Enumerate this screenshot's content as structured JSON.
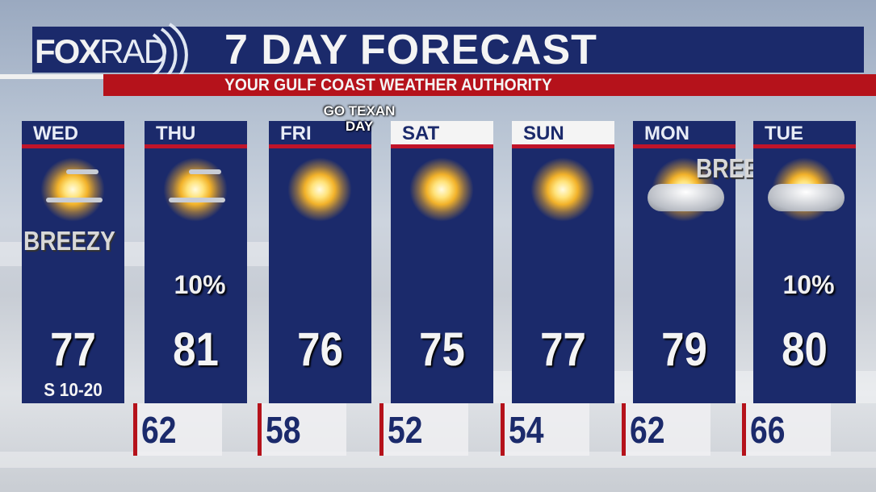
{
  "header": {
    "logo": "FOXRAD",
    "logo_fox": "FOX",
    "logo_rad": "RAD",
    "title": "7 DAY FORECAST",
    "subtitle": "YOUR GULF COAST WEATHER AUTHORITY"
  },
  "note": {
    "line1": "GO TEXAN",
    "line2": "DAY"
  },
  "colors": {
    "navy": "#1b2a6b",
    "red": "#b5121b"
  },
  "days": [
    {
      "day": "WED",
      "high": "77",
      "low": "",
      "pop": "",
      "tag": "BREEZY",
      "wind": "S 10-20",
      "icon": "mostly-sunny-icon"
    },
    {
      "day": "THU",
      "high": "81",
      "low": "62",
      "pop": "10%",
      "tag": "",
      "wind": "",
      "icon": "mostly-sunny-icon"
    },
    {
      "day": "FRI",
      "high": "76",
      "low": "58",
      "pop": "",
      "tag": "",
      "wind": "",
      "icon": "sunny-icon"
    },
    {
      "day": "SAT",
      "high": "75",
      "low": "52",
      "pop": "",
      "tag": "",
      "wind": "",
      "icon": "sunny-icon"
    },
    {
      "day": "SUN",
      "high": "77",
      "low": "54",
      "pop": "",
      "tag": "",
      "wind": "",
      "icon": "sunny-icon"
    },
    {
      "day": "MON",
      "high": "79",
      "low": "62",
      "pop": "",
      "tag": "BREEZY",
      "wind": "",
      "icon": "partly-cloudy-icon"
    },
    {
      "day": "TUE",
      "high": "80",
      "low": "66",
      "pop": "10%",
      "tag": "",
      "wind": "",
      "icon": "partly-cloudy-icon"
    }
  ]
}
